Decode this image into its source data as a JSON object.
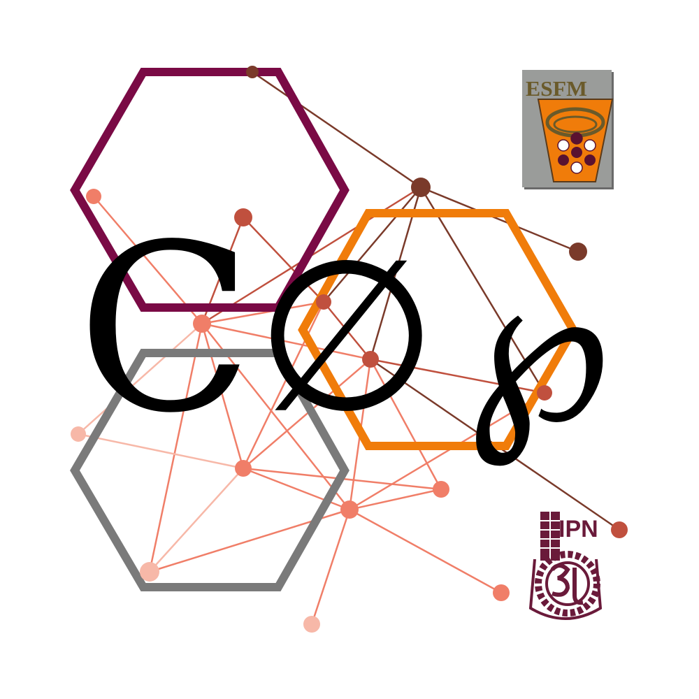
{
  "logo": {
    "glyphs": [
      "C",
      "∅",
      "℘"
    ],
    "colors": {
      "hex_top": "#7a0a45",
      "hex_right": "#f07c0a",
      "hex_bottom": "#7a7a7a",
      "glyph": "#000000",
      "network_dark": "#7a3a2a",
      "network_mid": "#c0503e",
      "network_light": "#f07e68",
      "network_pale": "#f7b8a8"
    }
  },
  "emblems": {
    "esfm": {
      "label": "ESFM",
      "colors": {
        "panel": "#9a9c9a",
        "shield": "#f07c0a",
        "text": "#6a5a2a",
        "dots": "#5a1230"
      }
    },
    "ipn": {
      "label": "IPN",
      "colors": {
        "main": "#6a1a3a"
      }
    }
  }
}
